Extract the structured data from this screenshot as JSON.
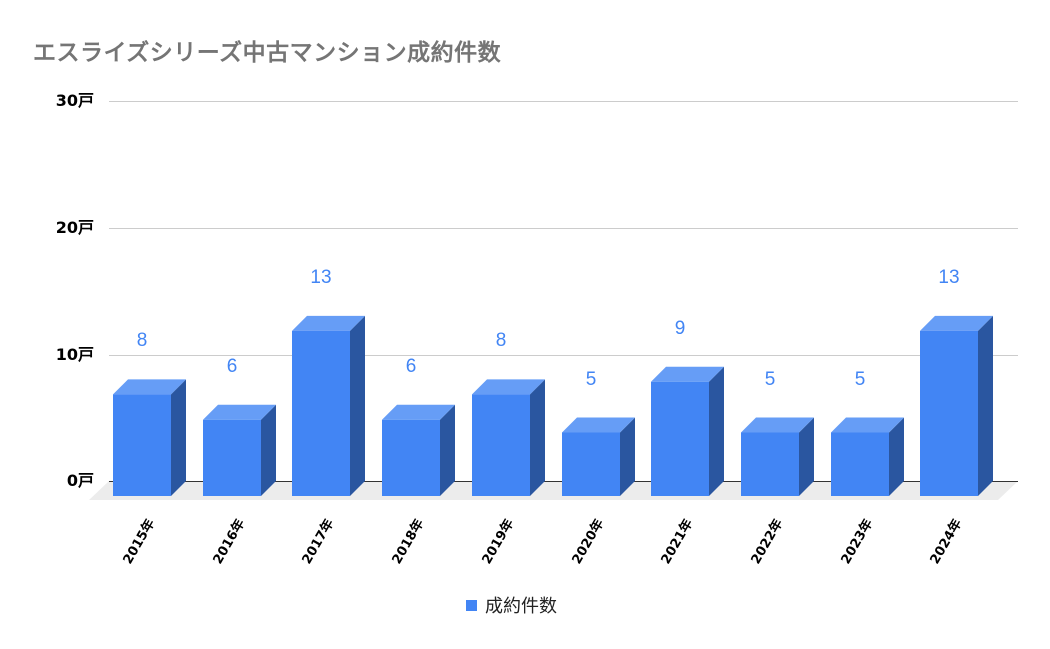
{
  "chart_data": {
    "type": "bar",
    "style": "3d-column",
    "title": "エスライズシリーズ中古マンション成約件数",
    "xlabel": "",
    "ylabel": "",
    "categories": [
      "2015年",
      "2016年",
      "2017年",
      "2018年",
      "2019年",
      "2020年",
      "2021年",
      "2022年",
      "2023年",
      "2024年"
    ],
    "series": [
      {
        "name": "成約件数",
        "color": "#4285f4",
        "values": [
          8,
          6,
          13,
          6,
          8,
          5,
          9,
          5,
          5,
          13
        ]
      }
    ],
    "ylim": [
      0,
      30
    ],
    "y_ticks": [
      "0戸",
      "10戸",
      "20戸",
      "30戸"
    ],
    "grid": true,
    "legend_position": "bottom",
    "data_labels": true
  },
  "legend": {
    "label": "成約件数"
  }
}
